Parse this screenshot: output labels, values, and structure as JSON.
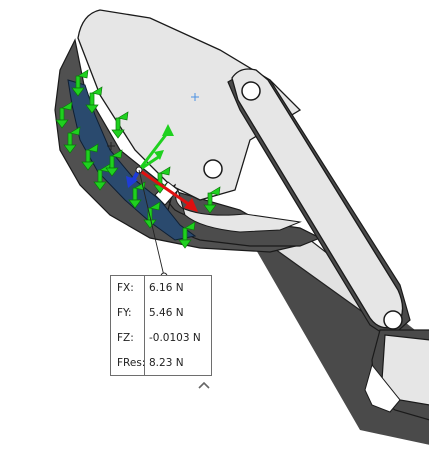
{
  "result_force": {
    "rows": [
      {
        "label": "FX:",
        "value": "6.16 N"
      },
      {
        "label": "FY:",
        "value": "5.46 N"
      },
      {
        "label": "FZ:",
        "value": "-0.0103 N"
      },
      {
        "label": "FRes:",
        "value": "8.23 N"
      }
    ]
  },
  "icons": {
    "collapse": "chevron-up-icon"
  },
  "colors": {
    "face_selected": "#2a4a6e",
    "part_body": "#e6e6e6",
    "part_shadow": "#555555",
    "force_arrows": "#1fd11f",
    "resultant_arrow": "#e01010",
    "z_axis": "#1e3cd8"
  }
}
